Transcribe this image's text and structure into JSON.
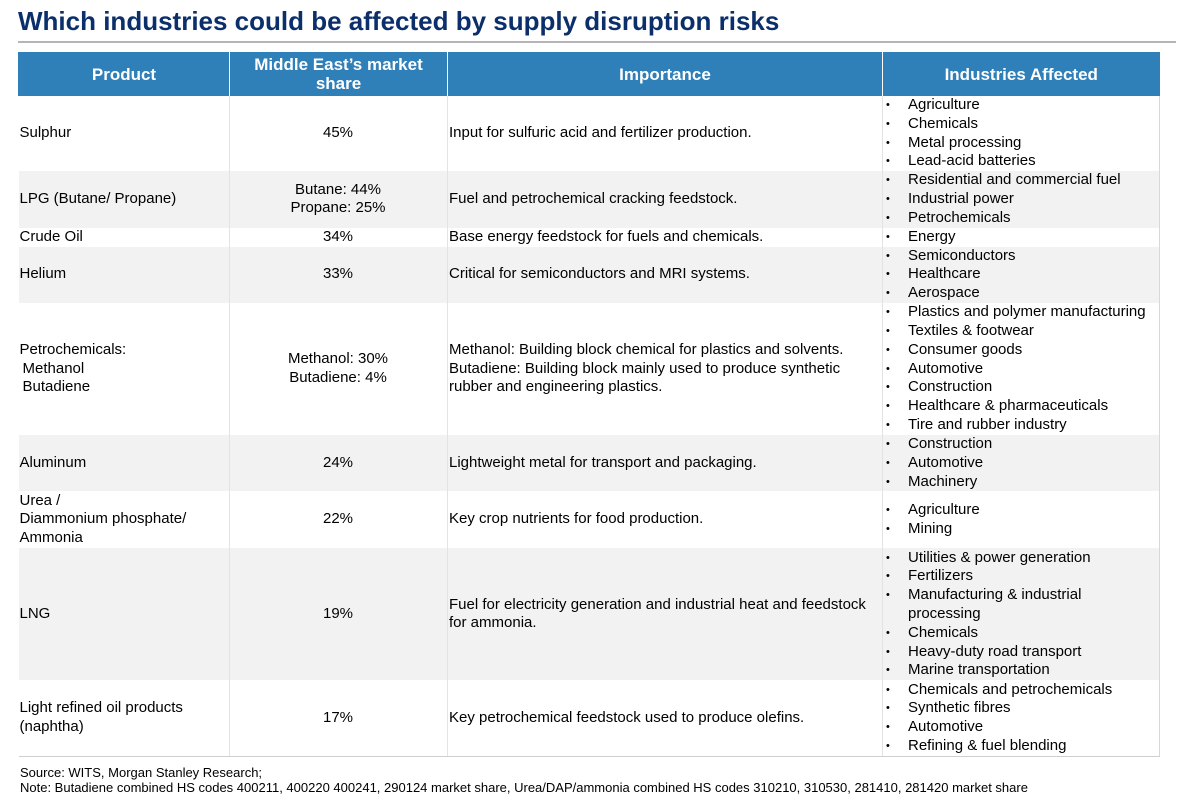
{
  "title": "Which industries could be affected by supply disruption risks",
  "headers": {
    "product": "Product",
    "share": "Middle East’s market share",
    "importance": "Importance",
    "industries": "Industries Affected"
  },
  "rows": [
    {
      "product": [
        "Sulphur"
      ],
      "share": [
        "45%"
      ],
      "importance": [
        "Input for sulfuric acid and fertilizer production."
      ],
      "industries": [
        "Agriculture",
        "Chemicals",
        "Metal processing",
        "Lead-acid batteries"
      ]
    },
    {
      "product": [
        "LPG (Butane/ Propane)"
      ],
      "share": [
        "Butane: 44%",
        "Propane: 25%"
      ],
      "importance": [
        "Fuel and petrochemical cracking feedstock."
      ],
      "industries": [
        "Residential and commercial fuel",
        "Industrial power",
        "Petrochemicals"
      ]
    },
    {
      "product": [
        "Crude Oil"
      ],
      "share": [
        "34%"
      ],
      "importance": [
        "Base energy feedstock for fuels and chemicals."
      ],
      "industries": [
        "Energy"
      ]
    },
    {
      "product": [
        "Helium"
      ],
      "share": [
        "33%"
      ],
      "importance": [
        "Critical for semiconductors and MRI systems."
      ],
      "industries": [
        "Semiconductors",
        "Healthcare",
        "Aerospace"
      ]
    },
    {
      "product": [
        "Petrochemicals:",
        "Methanol",
        "Butadiene"
      ],
      "share": [
        "Methanol: 30%",
        "Butadiene: 4%"
      ],
      "importance": [
        "Methanol: Building block chemical for plastics and solvents.",
        "Butadiene: Building block mainly used to produce synthetic",
        "rubber and engineering plastics."
      ],
      "industries": [
        "Plastics and polymer manufacturing",
        "Textiles & footwear",
        "Consumer goods",
        "Automotive",
        "Construction",
        "Healthcare & pharmaceuticals",
        "Tire and rubber industry"
      ]
    },
    {
      "product": [
        "Aluminum"
      ],
      "share": [
        "24%"
      ],
      "importance": [
        "Lightweight metal for transport and packaging."
      ],
      "industries": [
        "Construction",
        "Automotive",
        "Machinery"
      ]
    },
    {
      "product": [
        "Urea /",
        "Diammonium phosphate/",
        "Ammonia"
      ],
      "share": [
        "22%"
      ],
      "importance": [
        "Key crop nutrients for food production."
      ],
      "industries": [
        "Agriculture",
        "Mining"
      ]
    },
    {
      "product": [
        "LNG"
      ],
      "share": [
        "19%"
      ],
      "importance": [
        "Fuel for electricity generation and industrial heat and feedstock",
        "for ammonia."
      ],
      "industries": [
        "Utilities & power generation",
        "Fertilizers",
        "Manufacturing & industrial processing",
        "Chemicals",
        "Heavy-duty road transport",
        "Marine transportation"
      ]
    },
    {
      "product": [
        "Light refined oil products",
        "(naphtha)"
      ],
      "share": [
        "17%"
      ],
      "importance": [
        "Key petrochemical feedstock used to produce olefins."
      ],
      "industries": [
        "Chemicals and petrochemicals",
        "Synthetic fibres",
        "Automotive",
        "Refining & fuel blending"
      ]
    }
  ],
  "footer": {
    "source": "Source: WITS, Morgan Stanley Research;",
    "note": "Note: Butadiene combined HS codes 400211, 400220 400241, 290124 market share, Urea/DAP/ammonia combined HS codes 310210, 310530, 281410, 281420 market share"
  }
}
